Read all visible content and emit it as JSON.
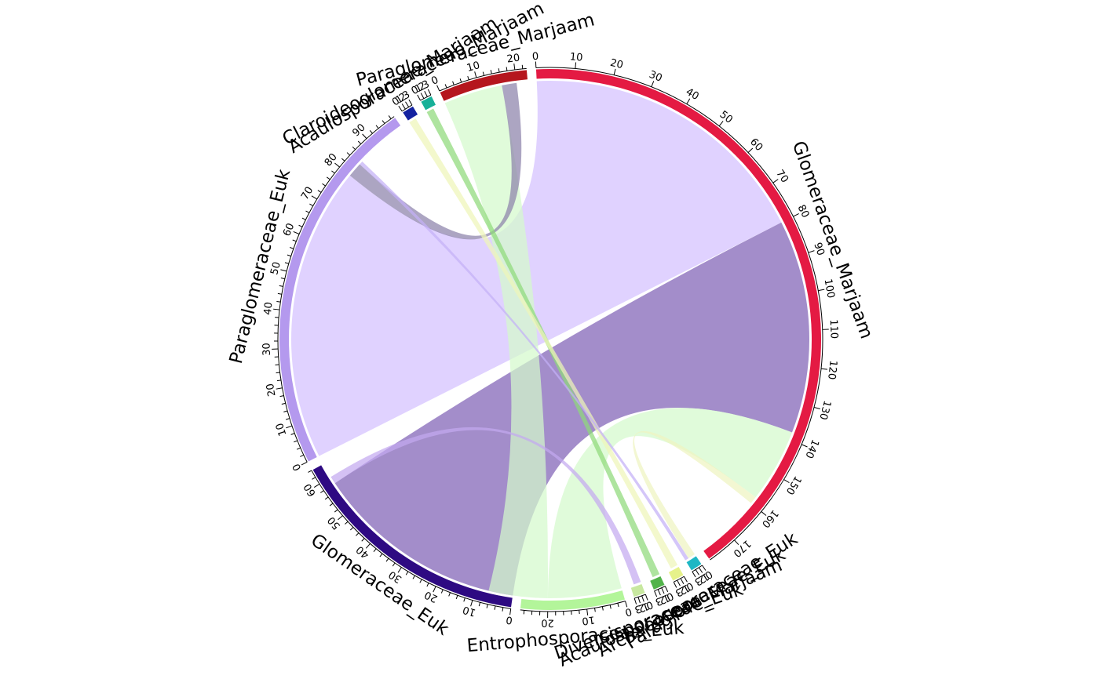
{
  "chart_data": {
    "type": "chord",
    "title": "",
    "sectors": [
      {
        "name": "Glomeraceae_Marjaam",
        "total": 178,
        "color": "#E41A43",
        "tick_step": 10,
        "label_step": 10,
        "max_label": 170
      },
      {
        "name": "Paraglomeraceae_Euk",
        "total": 3,
        "color": "#1DB7C4",
        "tick_step": 1,
        "label_step": 1,
        "max_label": 3
      },
      {
        "name": "Archaeosporaceae_Euk",
        "total": 3,
        "color": "#E6F28A",
        "tick_step": 1,
        "label_step": 1,
        "max_label": 3
      },
      {
        "name": "Acaulosporaceae_Marjaam",
        "total": 3,
        "color": "#52B34A",
        "tick_step": 1,
        "label_step": 1,
        "max_label": 3
      },
      {
        "name": "Diversisporaceae_Euk",
        "total": 3,
        "color": "#C8E8A0",
        "tick_step": 1,
        "label_step": 1,
        "max_label": 3
      },
      {
        "name": "Entrophosporaceae_Euk",
        "total": 27,
        "color": "#B3F59A",
        "tick_step": 2,
        "label_step": 10,
        "max_label": 20
      },
      {
        "name": "Glomeraceae_Euk",
        "total": 64,
        "color": "#2E0A82",
        "tick_step": 2,
        "label_step": 10,
        "max_label": 60
      },
      {
        "name": "Paraglomeraceae_Euk",
        "total": 99,
        "color": "#B499EE",
        "tick_step": 2,
        "label_step": 10,
        "max_label": 90
      },
      {
        "name": "Acaulosporaceae_Marjaam",
        "total": 3,
        "color": "#1422A0",
        "tick_step": 1,
        "label_step": 1,
        "max_label": 3
      },
      {
        "name": "Claroideoglomeraceae_Marjaam",
        "total": 3,
        "color": "#17B098",
        "tick_step": 1,
        "label_step": 1,
        "max_label": 3
      },
      {
        "name": "Paraglomeraceae_Marjaam",
        "total": 23,
        "color": "#B5161E",
        "tick_step": 2,
        "label_step": 10,
        "max_label": 20
      }
    ],
    "links": [
      {
        "from": 0,
        "to": 7,
        "value": 80,
        "color": "#D4C1FF"
      },
      {
        "from": 0,
        "to": 6,
        "value": 58,
        "color": "#7F61B5"
      },
      {
        "from": 0,
        "to": 5,
        "value": 20,
        "color": "#D4FACC"
      },
      {
        "from": 0,
        "to": 1,
        "value": 2,
        "color": "#EFF4C0"
      },
      {
        "from": 10,
        "to": 5,
        "value": 16,
        "color": "#D4FACC"
      },
      {
        "from": 10,
        "to": 7,
        "value": 4,
        "color": "#8C82AA"
      },
      {
        "from": 9,
        "to": 3,
        "value": 2,
        "color": "#8FD97A"
      },
      {
        "from": 8,
        "to": 2,
        "value": 2,
        "color": "#EEF5B8"
      },
      {
        "from": 7,
        "to": 1,
        "value": 1,
        "color": "#C4B0F6"
      },
      {
        "from": 6,
        "to": 4,
        "value": 2,
        "color": "#C3A9F0"
      }
    ],
    "grid": false,
    "legend": "none"
  }
}
